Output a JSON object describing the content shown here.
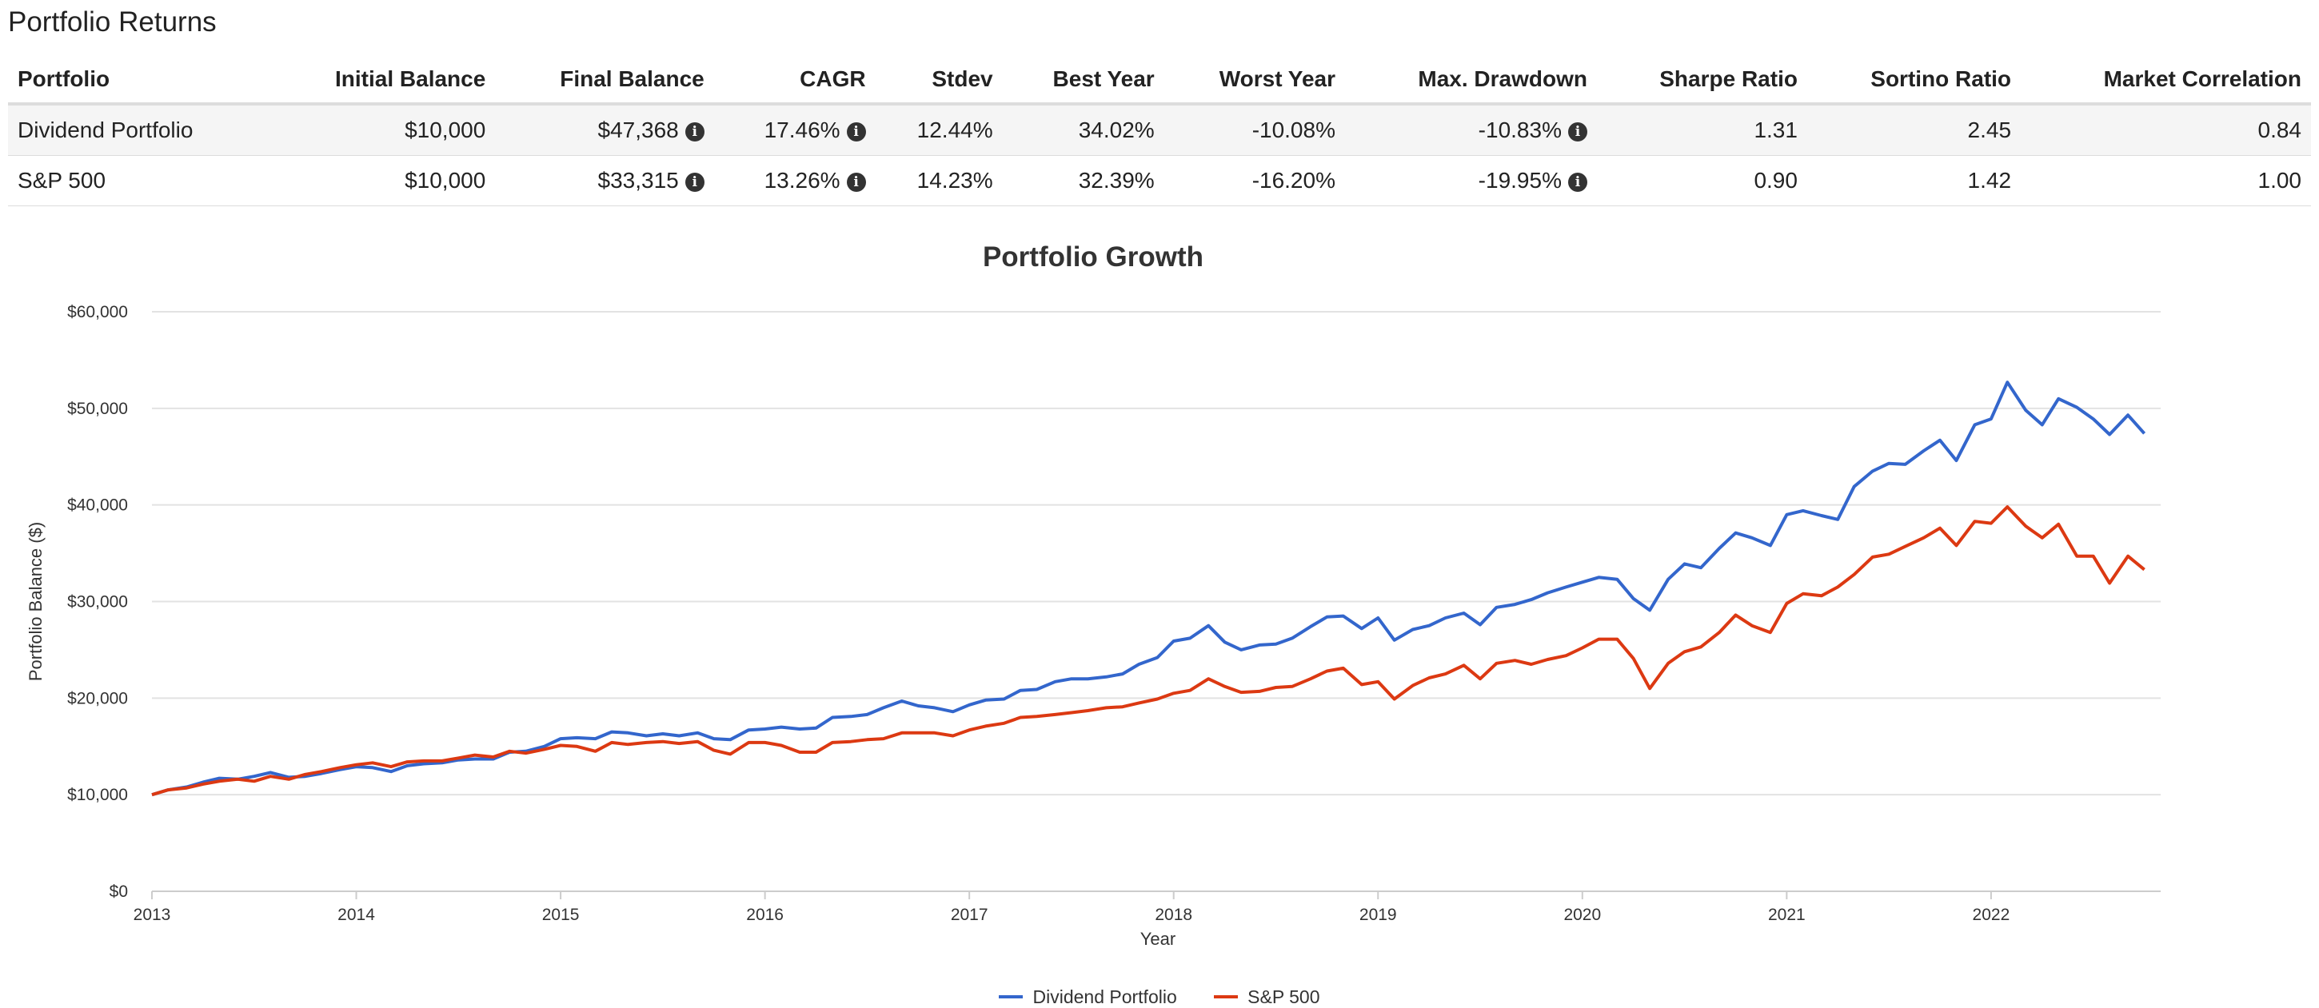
{
  "page_title": "Portfolio Returns",
  "table": {
    "headers": [
      "Portfolio",
      "Initial Balance",
      "Final Balance",
      "CAGR",
      "Stdev",
      "Best Year",
      "Worst Year",
      "Max. Drawdown",
      "Sharpe Ratio",
      "Sortino Ratio",
      "Market Correlation"
    ],
    "rows": [
      {
        "portfolio": "Dividend Portfolio",
        "initial": "$10,000",
        "final": "$47,368",
        "cagr": "17.46%",
        "stdev": "12.44%",
        "best": "34.02%",
        "worst": "-10.08%",
        "maxdd": "-10.83%",
        "sharpe": "1.31",
        "sortino": "2.45",
        "corr": "0.84"
      },
      {
        "portfolio": "S&P 500",
        "initial": "$10,000",
        "final": "$33,315",
        "cagr": "13.26%",
        "stdev": "14.23%",
        "best": "32.39%",
        "worst": "-16.20%",
        "maxdd": "-19.95%",
        "sharpe": "0.90",
        "sortino": "1.42",
        "corr": "1.00"
      }
    ],
    "info_icon": "info-circle-icon"
  },
  "chart_data": {
    "type": "line",
    "title": "Portfolio Growth",
    "xlabel": "Year",
    "ylabel": "Portfolio Balance ($)",
    "xlim": [
      2013,
      2022.83
    ],
    "ylim": [
      0,
      60000
    ],
    "yticks": [
      0,
      10000,
      20000,
      30000,
      40000,
      50000,
      60000
    ],
    "ytick_labels": [
      "$0",
      "$10,000",
      "$20,000",
      "$30,000",
      "$40,000",
      "$50,000",
      "$60,000"
    ],
    "xticks": [
      2013,
      2014,
      2015,
      2016,
      2017,
      2018,
      2019,
      2020,
      2021,
      2022
    ],
    "xtick_labels": [
      "2013",
      "2014",
      "2015",
      "2016",
      "2017",
      "2018",
      "2019",
      "2020",
      "2021",
      "2022"
    ],
    "grid": true,
    "legend_position": "bottom-center",
    "series": [
      {
        "name": "Dividend Portfolio",
        "color": "#3366cc",
        "points": [
          [
            2013.0,
            10000
          ],
          [
            2013.08,
            10500
          ],
          [
            2013.17,
            10800
          ],
          [
            2013.25,
            11300
          ],
          [
            2013.33,
            11700
          ],
          [
            2013.42,
            11600
          ],
          [
            2013.5,
            11900
          ],
          [
            2013.58,
            12300
          ],
          [
            2013.67,
            11800
          ],
          [
            2013.75,
            11900
          ],
          [
            2013.83,
            12200
          ],
          [
            2013.92,
            12600
          ],
          [
            2014.0,
            12900
          ],
          [
            2014.08,
            12800
          ],
          [
            2014.17,
            12400
          ],
          [
            2014.25,
            13000
          ],
          [
            2014.33,
            13200
          ],
          [
            2014.42,
            13300
          ],
          [
            2014.5,
            13600
          ],
          [
            2014.58,
            13700
          ],
          [
            2014.67,
            13700
          ],
          [
            2014.75,
            14400
          ],
          [
            2014.83,
            14500
          ],
          [
            2014.92,
            15000
          ],
          [
            2015.0,
            15800
          ],
          [
            2015.08,
            15900
          ],
          [
            2015.17,
            15800
          ],
          [
            2015.25,
            16500
          ],
          [
            2015.33,
            16400
          ],
          [
            2015.42,
            16100
          ],
          [
            2015.5,
            16300
          ],
          [
            2015.58,
            16100
          ],
          [
            2015.67,
            16400
          ],
          [
            2015.75,
            15800
          ],
          [
            2015.83,
            15700
          ],
          [
            2015.92,
            16700
          ],
          [
            2016.0,
            16800
          ],
          [
            2016.08,
            17000
          ],
          [
            2016.17,
            16800
          ],
          [
            2016.25,
            16900
          ],
          [
            2016.33,
            18000
          ],
          [
            2016.42,
            18100
          ],
          [
            2016.5,
            18300
          ],
          [
            2016.58,
            19000
          ],
          [
            2016.67,
            19700
          ],
          [
            2016.75,
            19200
          ],
          [
            2016.83,
            19000
          ],
          [
            2016.92,
            18600
          ],
          [
            2017.0,
            19300
          ],
          [
            2017.08,
            19800
          ],
          [
            2017.17,
            19900
          ],
          [
            2017.25,
            20800
          ],
          [
            2017.33,
            20900
          ],
          [
            2017.42,
            21700
          ],
          [
            2017.5,
            22000
          ],
          [
            2017.58,
            22000
          ],
          [
            2017.67,
            22200
          ],
          [
            2017.75,
            22500
          ],
          [
            2017.83,
            23500
          ],
          [
            2017.92,
            24200
          ],
          [
            2018.0,
            25900
          ],
          [
            2018.08,
            26200
          ],
          [
            2018.17,
            27500
          ],
          [
            2018.25,
            25800
          ],
          [
            2018.33,
            25000
          ],
          [
            2018.42,
            25500
          ],
          [
            2018.5,
            25600
          ],
          [
            2018.58,
            26200
          ],
          [
            2018.67,
            27400
          ],
          [
            2018.75,
            28400
          ],
          [
            2018.83,
            28500
          ],
          [
            2018.92,
            27200
          ],
          [
            2019.0,
            28300
          ],
          [
            2019.08,
            26000
          ],
          [
            2019.17,
            27100
          ],
          [
            2019.25,
            27500
          ],
          [
            2019.33,
            28300
          ],
          [
            2019.42,
            28800
          ],
          [
            2019.5,
            27600
          ],
          [
            2019.58,
            29400
          ],
          [
            2019.67,
            29700
          ],
          [
            2019.75,
            30200
          ],
          [
            2019.83,
            30900
          ],
          [
            2019.92,
            31500
          ],
          [
            2020.0,
            32000
          ],
          [
            2020.08,
            32500
          ],
          [
            2020.17,
            32300
          ],
          [
            2020.25,
            30300
          ],
          [
            2020.33,
            29100
          ],
          [
            2020.42,
            32300
          ],
          [
            2020.5,
            33900
          ],
          [
            2020.58,
            33500
          ],
          [
            2020.67,
            35500
          ],
          [
            2020.75,
            37100
          ],
          [
            2020.83,
            36600
          ],
          [
            2020.92,
            35800
          ],
          [
            2021.0,
            39000
          ],
          [
            2021.08,
            39400
          ],
          [
            2021.17,
            38900
          ],
          [
            2021.25,
            38500
          ],
          [
            2021.33,
            41900
          ],
          [
            2021.42,
            43500
          ],
          [
            2021.5,
            44300
          ],
          [
            2021.58,
            44200
          ],
          [
            2021.67,
            45600
          ],
          [
            2021.75,
            46700
          ],
          [
            2021.83,
            44600
          ],
          [
            2021.92,
            48300
          ],
          [
            2022.0,
            48900
          ],
          [
            2022.08,
            52700
          ],
          [
            2022.17,
            49800
          ],
          [
            2022.25,
            48300
          ],
          [
            2022.33,
            51000
          ],
          [
            2022.42,
            50100
          ],
          [
            2022.5,
            48900
          ],
          [
            2022.58,
            47300
          ],
          [
            2022.67,
            49300
          ],
          [
            2022.75,
            47400
          ]
        ]
      },
      {
        "name": "S&P 500",
        "color": "#dc3912",
        "points": [
          [
            2013.0,
            10000
          ],
          [
            2013.08,
            10500
          ],
          [
            2013.17,
            10700
          ],
          [
            2013.25,
            11100
          ],
          [
            2013.33,
            11400
          ],
          [
            2013.42,
            11600
          ],
          [
            2013.5,
            11400
          ],
          [
            2013.58,
            11900
          ],
          [
            2013.67,
            11600
          ],
          [
            2013.75,
            12100
          ],
          [
            2013.83,
            12400
          ],
          [
            2013.92,
            12800
          ],
          [
            2014.0,
            13100
          ],
          [
            2014.08,
            13300
          ],
          [
            2014.17,
            12900
          ],
          [
            2014.25,
            13400
          ],
          [
            2014.33,
            13500
          ],
          [
            2014.42,
            13500
          ],
          [
            2014.5,
            13800
          ],
          [
            2014.58,
            14100
          ],
          [
            2014.67,
            13900
          ],
          [
            2014.75,
            14500
          ],
          [
            2014.83,
            14300
          ],
          [
            2014.92,
            14700
          ],
          [
            2015.0,
            15100
          ],
          [
            2015.08,
            15000
          ],
          [
            2015.17,
            14500
          ],
          [
            2015.25,
            15400
          ],
          [
            2015.33,
            15200
          ],
          [
            2015.42,
            15400
          ],
          [
            2015.5,
            15500
          ],
          [
            2015.58,
            15300
          ],
          [
            2015.67,
            15500
          ],
          [
            2015.75,
            14600
          ],
          [
            2015.83,
            14200
          ],
          [
            2015.92,
            15400
          ],
          [
            2016.0,
            15400
          ],
          [
            2016.08,
            15100
          ],
          [
            2016.17,
            14400
          ],
          [
            2016.25,
            14400
          ],
          [
            2016.33,
            15400
          ],
          [
            2016.42,
            15500
          ],
          [
            2016.5,
            15700
          ],
          [
            2016.58,
            15800
          ],
          [
            2016.67,
            16400
          ],
          [
            2016.75,
            16400
          ],
          [
            2016.83,
            16400
          ],
          [
            2016.92,
            16100
          ],
          [
            2017.0,
            16700
          ],
          [
            2017.08,
            17100
          ],
          [
            2017.17,
            17400
          ],
          [
            2017.25,
            18000
          ],
          [
            2017.33,
            18100
          ],
          [
            2017.42,
            18300
          ],
          [
            2017.5,
            18500
          ],
          [
            2017.58,
            18700
          ],
          [
            2017.67,
            19000
          ],
          [
            2017.75,
            19100
          ],
          [
            2017.83,
            19500
          ],
          [
            2017.92,
            19900
          ],
          [
            2018.0,
            20500
          ],
          [
            2018.08,
            20800
          ],
          [
            2018.17,
            22000
          ],
          [
            2018.25,
            21200
          ],
          [
            2018.33,
            20600
          ],
          [
            2018.42,
            20700
          ],
          [
            2018.5,
            21100
          ],
          [
            2018.58,
            21200
          ],
          [
            2018.67,
            22000
          ],
          [
            2018.75,
            22800
          ],
          [
            2018.83,
            23100
          ],
          [
            2018.92,
            21400
          ],
          [
            2019.0,
            21700
          ],
          [
            2019.08,
            19900
          ],
          [
            2019.17,
            21300
          ],
          [
            2019.25,
            22100
          ],
          [
            2019.33,
            22500
          ],
          [
            2019.42,
            23400
          ],
          [
            2019.5,
            22000
          ],
          [
            2019.58,
            23600
          ],
          [
            2019.67,
            23900
          ],
          [
            2019.75,
            23500
          ],
          [
            2019.83,
            24000
          ],
          [
            2019.92,
            24400
          ],
          [
            2020.0,
            25200
          ],
          [
            2020.08,
            26100
          ],
          [
            2020.17,
            26100
          ],
          [
            2020.25,
            24100
          ],
          [
            2020.33,
            21000
          ],
          [
            2020.42,
            23600
          ],
          [
            2020.5,
            24800
          ],
          [
            2020.58,
            25300
          ],
          [
            2020.67,
            26800
          ],
          [
            2020.75,
            28600
          ],
          [
            2020.83,
            27500
          ],
          [
            2020.92,
            26800
          ],
          [
            2021.0,
            29800
          ],
          [
            2021.08,
            30800
          ],
          [
            2021.17,
            30600
          ],
          [
            2021.25,
            31500
          ],
          [
            2021.33,
            32800
          ],
          [
            2021.42,
            34600
          ],
          [
            2021.5,
            34900
          ],
          [
            2021.58,
            35700
          ],
          [
            2021.67,
            36600
          ],
          [
            2021.75,
            37600
          ],
          [
            2021.83,
            35800
          ],
          [
            2021.92,
            38300
          ],
          [
            2022.0,
            38100
          ],
          [
            2022.08,
            39800
          ],
          [
            2022.17,
            37800
          ],
          [
            2022.25,
            36600
          ],
          [
            2022.33,
            38000
          ],
          [
            2022.42,
            34700
          ],
          [
            2022.5,
            34700
          ],
          [
            2022.58,
            31900
          ],
          [
            2022.67,
            34700
          ],
          [
            2022.75,
            33300
          ]
        ]
      }
    ]
  }
}
